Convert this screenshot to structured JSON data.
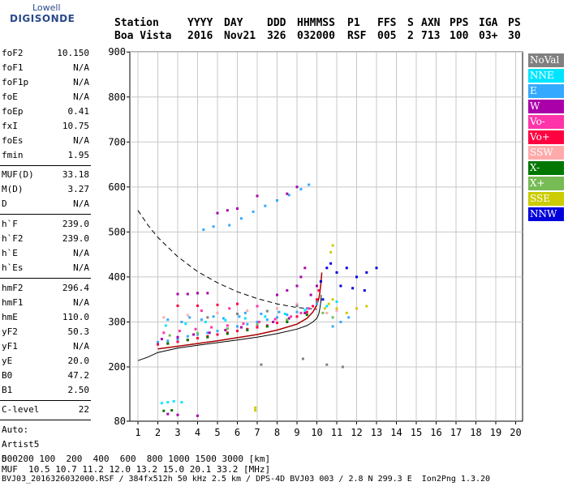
{
  "logo": {
    "line1": "Lowell",
    "line2": "DIGISONDE"
  },
  "header": {
    "row1": [
      "Station",
      "YYYY",
      "DAY",
      "DDD",
      "HHMMSS",
      "P1",
      "FFS",
      "S",
      "AXN",
      "PPS",
      "IGA",
      "PS"
    ],
    "row2": [
      "Boa Vista",
      "2016",
      "Nov21",
      "326",
      "032000",
      "RSF",
      "005",
      "2",
      "713",
      "100",
      "03+",
      "30"
    ]
  },
  "params": {
    "group1": [
      {
        "name": "foF2",
        "value": "10.150"
      },
      {
        "name": "foF1",
        "value": "N/A"
      },
      {
        "name": "foF1p",
        "value": "N/A"
      },
      {
        "name": "foE",
        "value": "N/A"
      },
      {
        "name": "foEp",
        "value": "0.41"
      },
      {
        "name": "fxI",
        "value": "10.75"
      },
      {
        "name": "foEs",
        "value": "N/A"
      },
      {
        "name": "fmin",
        "value": "1.95"
      }
    ],
    "group2": [
      {
        "name": "MUF(D)",
        "value": "33.18"
      },
      {
        "name": "M(D)",
        "value": "3.27"
      },
      {
        "name": "D",
        "value": "N/A"
      }
    ],
    "group3": [
      {
        "name": "h`F",
        "value": "239.0"
      },
      {
        "name": "h`F2",
        "value": "239.0"
      },
      {
        "name": "h`E",
        "value": "N/A"
      },
      {
        "name": "h`Es",
        "value": "N/A"
      }
    ],
    "group4": [
      {
        "name": "hmF2",
        "value": "296.4"
      },
      {
        "name": "hmF1",
        "value": "N/A"
      },
      {
        "name": "hmE",
        "value": "110.0"
      },
      {
        "name": "yF2",
        "value": "50.3"
      },
      {
        "name": "yF1",
        "value": "N/A"
      },
      {
        "name": "yE",
        "value": "20.0"
      },
      {
        "name": "B0",
        "value": "47.2"
      },
      {
        "name": "B1",
        "value": "2.50"
      }
    ],
    "group5": [
      {
        "name": "C-level",
        "value": "22"
      }
    ]
  },
  "side_notes": {
    "auto": "Auto:",
    "artist": "Artist5",
    "version": "500200"
  },
  "chart_data": {
    "type": "scatter",
    "xlim": [
      1,
      20
    ],
    "ylim": [
      80,
      900
    ],
    "x_ticks": [
      "1",
      "2",
      "3",
      "4",
      "5",
      "6",
      "7",
      "8",
      "9",
      "10",
      "11",
      "12",
      "13",
      "14",
      "15",
      "16",
      "17",
      "18",
      "19",
      "20"
    ],
    "y_ticks": [
      "900",
      "800",
      "700",
      "600",
      "500",
      "400",
      "300",
      "200",
      "80"
    ],
    "y_tick_values": [
      900,
      800,
      700,
      600,
      500,
      400,
      300,
      200,
      80
    ],
    "grid": true,
    "legend_placement": "right",
    "legend": [
      {
        "name": "NoVal",
        "color": "#808080"
      },
      {
        "name": "NNE",
        "color": "#00e5ff"
      },
      {
        "name": "E",
        "color": "#33aaff"
      },
      {
        "name": "W",
        "color": "#aa00aa"
      },
      {
        "name": "Vo-",
        "color": "#ff33aa"
      },
      {
        "name": "Vo+",
        "color": "#ff0040"
      },
      {
        "name": "SSW",
        "color": "#ffaaaa"
      },
      {
        "name": "X-",
        "color": "#007700"
      },
      {
        "name": "X+",
        "color": "#77bb55"
      },
      {
        "name": "SSE",
        "color": "#cccc00"
      },
      {
        "name": "NNW",
        "color": "#0000dd"
      }
    ],
    "series": [
      {
        "color": "#33aaff",
        "points": [
          [
            2.0,
            255
          ],
          [
            2.5,
            258
          ],
          [
            3,
            262
          ],
          [
            3.5,
            268
          ],
          [
            4,
            272
          ],
          [
            4.5,
            276
          ],
          [
            5,
            280
          ],
          [
            5.5,
            285
          ],
          [
            6,
            290
          ],
          [
            6.5,
            295
          ],
          [
            7,
            300
          ],
          [
            7.5,
            305
          ],
          [
            8,
            310
          ],
          [
            8.5,
            316
          ],
          [
            9,
            322
          ],
          [
            9.5,
            330
          ],
          [
            10,
            340
          ],
          [
            3.2,
            300
          ],
          [
            4.2,
            305
          ],
          [
            5.3,
            308
          ],
          [
            6.1,
            312
          ],
          [
            7.2,
            318
          ],
          [
            8.1,
            322
          ],
          [
            2.5,
            305
          ],
          [
            3.6,
            310
          ],
          [
            4.8,
            312
          ],
          [
            6.4,
            320
          ],
          [
            5.6,
            515
          ],
          [
            6.2,
            530
          ],
          [
            6.8,
            545
          ],
          [
            7.4,
            558
          ],
          [
            8.0,
            570
          ],
          [
            8.6,
            582
          ],
          [
            9.2,
            595
          ],
          [
            9.6,
            605
          ],
          [
            4.3,
            505
          ],
          [
            4.8,
            512
          ],
          [
            10.8,
            290
          ],
          [
            11.2,
            300
          ],
          [
            11.6,
            310
          ]
        ]
      },
      {
        "color": "#aa00aa",
        "points": [
          [
            2.2,
            262
          ],
          [
            3,
            266
          ],
          [
            3.8,
            272
          ],
          [
            4.6,
            276
          ],
          [
            5.4,
            282
          ],
          [
            6.2,
            288
          ],
          [
            7,
            294
          ],
          [
            7.8,
            300
          ],
          [
            8.6,
            308
          ],
          [
            9.4,
            320
          ],
          [
            3,
            362
          ],
          [
            3.5,
            362
          ],
          [
            4,
            364
          ],
          [
            4.5,
            364
          ],
          [
            8,
            360
          ],
          [
            8.5,
            370
          ],
          [
            9,
            380
          ],
          [
            9.2,
            400
          ],
          [
            9.4,
            420
          ],
          [
            5,
            542
          ],
          [
            5.5,
            548
          ],
          [
            6,
            552
          ],
          [
            7,
            580
          ],
          [
            8.5,
            585
          ],
          [
            9,
            600
          ],
          [
            2.5,
            96
          ],
          [
            3,
            94
          ],
          [
            4,
            92
          ],
          [
            9.7,
            360
          ],
          [
            10,
            380
          ]
        ]
      },
      {
        "color": "#ff0040",
        "points": [
          [
            2,
            250
          ],
          [
            2.5,
            252
          ],
          [
            3,
            256
          ],
          [
            3.5,
            260
          ],
          [
            4,
            264
          ],
          [
            4.5,
            268
          ],
          [
            5,
            272
          ],
          [
            5.5,
            276
          ],
          [
            6,
            280
          ],
          [
            6.5,
            284
          ],
          [
            7,
            288
          ],
          [
            7.5,
            292
          ],
          [
            8,
            298
          ],
          [
            8.5,
            304
          ],
          [
            9,
            312
          ],
          [
            9.5,
            322
          ],
          [
            9.8,
            335
          ],
          [
            10,
            350
          ],
          [
            10.1,
            370
          ],
          [
            10.2,
            390
          ],
          [
            3,
            336
          ],
          [
            4,
            336
          ],
          [
            5,
            338
          ],
          [
            6,
            340
          ]
        ]
      },
      {
        "color": "#ff33aa",
        "points": [
          [
            2.3,
            276
          ],
          [
            3.1,
            280
          ],
          [
            3.9,
            284
          ],
          [
            4.7,
            288
          ],
          [
            5.5,
            292
          ],
          [
            6.3,
            296
          ],
          [
            7.1,
            300
          ],
          [
            7.9,
            306
          ],
          [
            8.7,
            312
          ],
          [
            9.2,
            320
          ],
          [
            9.6,
            330
          ],
          [
            4.2,
            325
          ],
          [
            5.6,
            330
          ],
          [
            7,
            335
          ]
        ]
      },
      {
        "color": "#00e5ff",
        "points": [
          [
            2.4,
            292
          ],
          [
            3.4,
            296
          ],
          [
            4.4,
            300
          ],
          [
            5.4,
            304
          ],
          [
            6.4,
            308
          ],
          [
            7.4,
            312
          ],
          [
            8.4,
            318
          ],
          [
            9.4,
            326
          ],
          [
            10.5,
            335
          ],
          [
            11,
            345
          ],
          [
            2.2,
            120
          ],
          [
            2.5,
            122
          ],
          [
            2.8,
            124
          ],
          [
            3.2,
            122
          ]
        ]
      },
      {
        "color": "#007700",
        "points": [
          [
            2.5,
            252
          ],
          [
            3.5,
            260
          ],
          [
            4.5,
            266
          ],
          [
            5.5,
            274
          ],
          [
            6.5,
            282
          ],
          [
            7.5,
            290
          ],
          [
            8.5,
            300
          ],
          [
            9.5,
            316
          ],
          [
            2.3,
            103
          ],
          [
            2.7,
            104
          ]
        ]
      },
      {
        "color": "#cccc00",
        "points": [
          [
            10.4,
            330
          ],
          [
            10.6,
            340
          ],
          [
            10.8,
            350
          ],
          [
            11,
            330
          ],
          [
            11.5,
            320
          ],
          [
            12,
            330
          ],
          [
            12.5,
            335
          ],
          [
            10.7,
            455
          ],
          [
            10.8,
            470
          ],
          [
            6.9,
            104
          ],
          [
            6.9,
            110
          ]
        ]
      },
      {
        "color": "#0000dd",
        "points": [
          [
            10.2,
            390
          ],
          [
            10.5,
            420
          ],
          [
            10.7,
            430
          ],
          [
            11,
            410
          ],
          [
            11.5,
            420
          ],
          [
            12,
            400
          ],
          [
            12.5,
            410
          ],
          [
            13,
            420
          ],
          [
            10.3,
            350
          ],
          [
            11.2,
            380
          ],
          [
            11.8,
            375
          ],
          [
            12.4,
            370
          ]
        ]
      },
      {
        "color": "#ffaaaa",
        "points": [
          [
            2.3,
            310
          ],
          [
            3.5,
            315
          ],
          [
            5,
            320
          ],
          [
            6.5,
            325
          ],
          [
            8,
            330
          ],
          [
            9,
            340
          ],
          [
            10.5,
            320
          ],
          [
            11,
            325
          ]
        ]
      },
      {
        "color": "#77bb55",
        "points": [
          [
            2.6,
            270
          ],
          [
            4,
            275
          ],
          [
            5.5,
            285
          ],
          [
            7,
            295
          ],
          [
            8.5,
            305
          ],
          [
            10.3,
            320
          ],
          [
            10.8,
            310
          ]
        ]
      },
      {
        "color": "#808080",
        "points": [
          [
            4.5,
            310
          ],
          [
            6,
            318
          ],
          [
            7.5,
            324
          ],
          [
            9,
            336
          ],
          [
            10,
            345
          ],
          [
            7.2,
            205
          ],
          [
            9.3,
            218
          ],
          [
            10.5,
            205
          ],
          [
            11.3,
            200
          ]
        ]
      }
    ],
    "profile_curve": [
      [
        1,
        214
      ],
      [
        1.5,
        222
      ],
      [
        2,
        232
      ],
      [
        3,
        242
      ],
      [
        4,
        248
      ],
      [
        5,
        254
      ],
      [
        6,
        260
      ],
      [
        7,
        266
      ],
      [
        8,
        274
      ],
      [
        9,
        284
      ],
      [
        9.5,
        292
      ],
      [
        9.8,
        300
      ],
      [
        10,
        308
      ],
      [
        10.1,
        318
      ],
      [
        10.15,
        330
      ],
      [
        10.2,
        345
      ],
      [
        10.22,
        360
      ]
    ],
    "trace_curve": [
      [
        2,
        240
      ],
      [
        3,
        246
      ],
      [
        4,
        252
      ],
      [
        5,
        258
      ],
      [
        6,
        265
      ],
      [
        7,
        272
      ],
      [
        8,
        282
      ],
      [
        9,
        295
      ],
      [
        9.5,
        308
      ],
      [
        9.8,
        322
      ],
      [
        10,
        338
      ],
      [
        10.1,
        352
      ],
      [
        10.15,
        365
      ],
      [
        10.2,
        385
      ],
      [
        10.25,
        410
      ]
    ],
    "dashed_curve": [
      [
        1,
        548
      ],
      [
        1.5,
        515
      ],
      [
        2,
        488
      ],
      [
        3,
        445
      ],
      [
        4,
        412
      ],
      [
        5,
        387
      ],
      [
        6,
        367
      ],
      [
        7,
        352
      ],
      [
        8,
        340
      ],
      [
        9,
        332
      ],
      [
        10,
        328
      ]
    ]
  },
  "footer": {
    "d_row": "D      100  200  400  600  800 1000 1500 3000 [km]",
    "muf_row": "MUF  10.5 10.7 11.2 12.0 13.2 15.0 20.1 33.2 [MHz]",
    "info_row": "BVJ03_2016326032000.RSF / 384fx512h 50 kHz 2.5 km / DPS-4D BVJ03 003 / 2.8 N 299.3 E  Ion2Png 1.3.20"
  }
}
